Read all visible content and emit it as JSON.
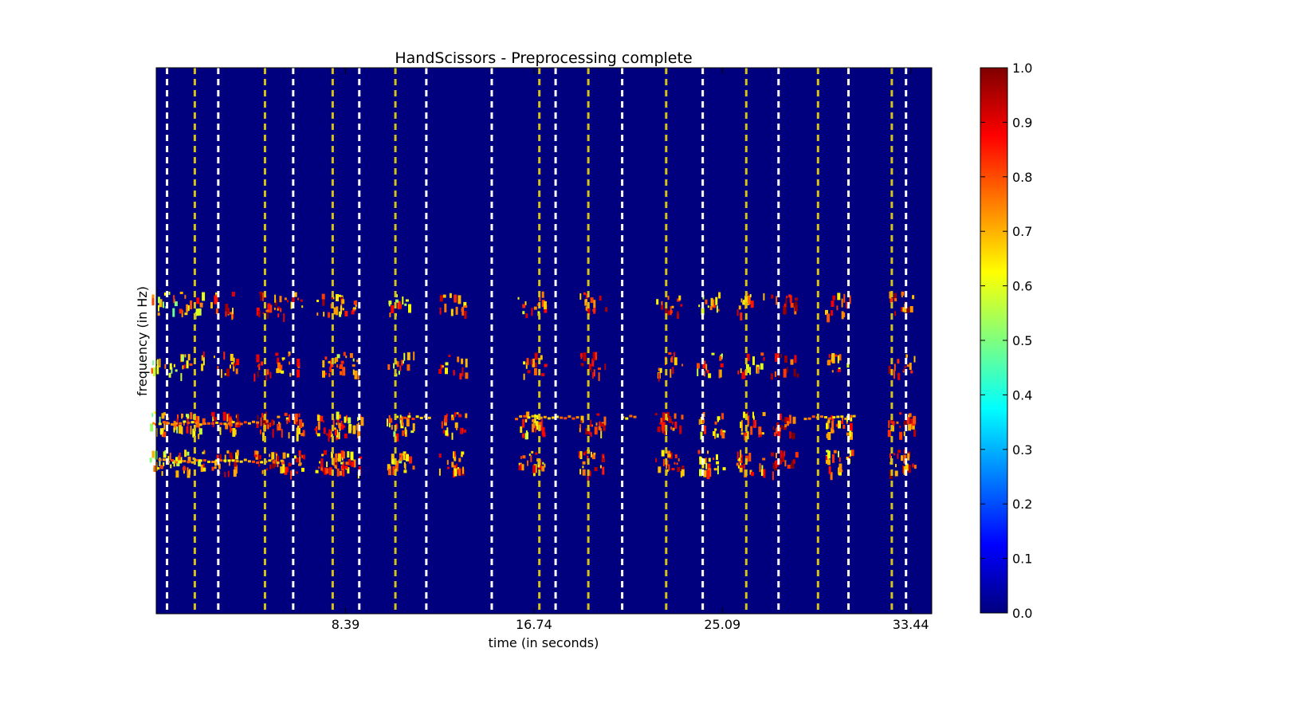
{
  "chart_data": {
    "type": "heatmap",
    "title": "HandScissors - Preprocessing complete",
    "xlabel": "time (in seconds)",
    "ylabel": "frequency (in Hz)",
    "xlim": [
      0,
      34.37
    ],
    "x_ticks": [
      "8.39",
      "16.74",
      "25.09",
      "33.44"
    ],
    "x_tick_values": [
      8.39,
      16.74,
      25.09,
      33.44
    ],
    "y_ticks": [],
    "y_range": [
      0,
      1
    ],
    "grid": false,
    "background_color": "#00007f",
    "colormap": "jet",
    "colorbar": {
      "ticks": [
        "0.0",
        "0.1",
        "0.2",
        "0.3",
        "0.4",
        "0.5",
        "0.6",
        "0.7",
        "0.8",
        "0.9",
        "1.0"
      ],
      "range": [
        0.0,
        1.0
      ],
      "stops": [
        "#00007f",
        "#0000ff",
        "#007fff",
        "#00ffff",
        "#7fff7f",
        "#ffff00",
        "#ff7f00",
        "#ff0000",
        "#7f0000"
      ]
    },
    "markers": {
      "white_dashed_times": [
        0.48,
        2.75,
        6.07,
        9.0,
        11.97,
        14.87,
        17.7,
        20.65,
        24.22,
        27.58,
        30.68,
        33.23
      ],
      "yellow_dashed_times": [
        1.71,
        4.82,
        7.82,
        10.6,
        16.98,
        19.15,
        22.6,
        26.15,
        29.33,
        32.6
      ],
      "white_color": "#ffffff",
      "yellow_color": "#d4c21a"
    },
    "activity_bands_y": [
      0.28,
      0.35,
      0.46,
      0.57
    ],
    "activity_clusters": [
      {
        "t": 0.3,
        "intensity": 0.65
      },
      {
        "t": 1.5,
        "intensity": 0.72
      },
      {
        "t": 3.0,
        "intensity": 0.8
      },
      {
        "t": 4.9,
        "intensity": 0.85
      },
      {
        "t": 5.9,
        "intensity": 0.78
      },
      {
        "t": 7.6,
        "intensity": 0.8
      },
      {
        "t": 8.5,
        "intensity": 0.74
      },
      {
        "t": 10.8,
        "intensity": 0.7
      },
      {
        "t": 13.1,
        "intensity": 0.78
      },
      {
        "t": 16.6,
        "intensity": 0.76
      },
      {
        "t": 19.3,
        "intensity": 0.82
      },
      {
        "t": 22.7,
        "intensity": 0.8
      },
      {
        "t": 24.5,
        "intensity": 0.72
      },
      {
        "t": 26.3,
        "intensity": 0.76
      },
      {
        "t": 27.8,
        "intensity": 0.9
      },
      {
        "t": 30.2,
        "intensity": 0.74
      },
      {
        "t": 33.0,
        "intensity": 0.84
      }
    ]
  }
}
